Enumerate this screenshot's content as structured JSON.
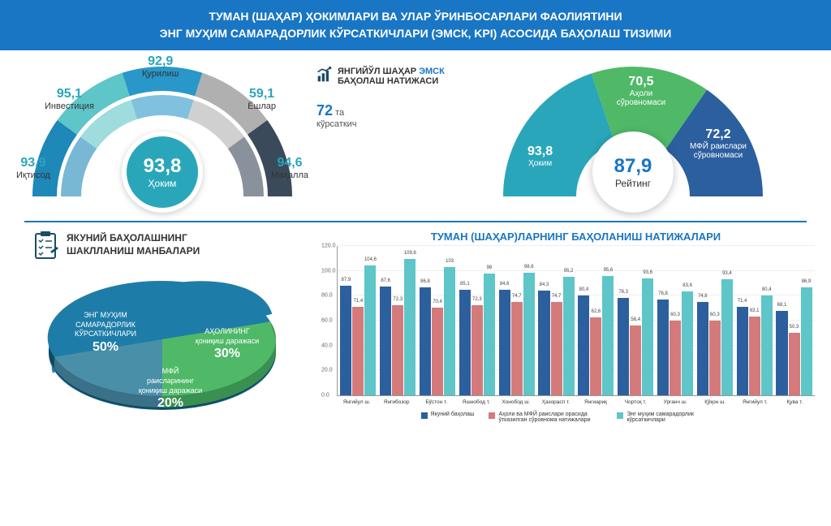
{
  "header": {
    "line1": "ТУМАН (ШАҲАР) ҲОКИМЛАРИ ВА УЛАР ЎРИНБОСАРЛАРИ ФАОЛИЯТИНИ",
    "line2": "ЭНГ МУҲИМ САМАРАДОРЛИК КЎРСАТКИЧЛАРИ (ЭМСК, KPI) АСОСИДА БАҲОЛАШ ТИЗИМИ"
  },
  "left_gauge": {
    "type": "semi-donut",
    "center_value": "93,8",
    "center_label": "Ҳоким",
    "center_color": "#2aa6ba",
    "segments": [
      {
        "label": "Иқтисод",
        "value": "93,9",
        "color": "#1e88b8"
      },
      {
        "label": "Инвестиция",
        "value": "95,1",
        "color": "#5ec5c8"
      },
      {
        "label": "Қурилиш",
        "value": "92,9",
        "color": "#2997c9"
      },
      {
        "label": "Ёшлар",
        "value": "59,1",
        "color": "#b0b0b0"
      },
      {
        "label": "Маҳалла",
        "value": "94,6",
        "color": "#3a4a5a"
      }
    ]
  },
  "mid_info": {
    "title_prefix": "ЯНГИЙЎЛ ШАҲАР ",
    "title_blue": "ЭМСК",
    "title_suffix": "БАҲОЛАШ НАТИЖАСИ",
    "count_num": "72",
    "count_suffix_1": " та",
    "count_suffix_2": "кўрсаткич"
  },
  "right_gauge": {
    "type": "semi-donut",
    "center_value": "87,9",
    "center_label": "Рейтинг",
    "segments": [
      {
        "label": "Ҳоким",
        "value": "93,8",
        "color": "#2aa6ba"
      },
      {
        "label": "Аҳоли сўровномаси",
        "value": "70,5",
        "color": "#4fb968"
      },
      {
        "label": "МФЙ раислари сўровномаси",
        "value": "72,2",
        "color": "#2c5f9e"
      }
    ]
  },
  "pie_section": {
    "title_line1": "ЯКУНИЙ БАҲОЛАШНИНГ",
    "title_line2": "ШАКЛЛАНИШ МАНБАЛАРИ",
    "clipboard_color": "#1a4d66",
    "slices": [
      {
        "label_l1": "ЭНГ МУҲИМ",
        "label_l2": "САМАРАДОРЛИК",
        "label_l3": "КЎРСАТКИЧЛАРИ",
        "pct": "50%",
        "color": "#1e7da8"
      },
      {
        "label_l1": "АҲОЛИНИНГ",
        "label_l2": "қониқиш даражаси",
        "label_l3": "",
        "pct": "30%",
        "color": "#4fb968"
      },
      {
        "label_l1": "МФЙ",
        "label_l2": "раисларининг",
        "label_l3": "қониқиш даражаси",
        "pct": "20%",
        "color": "#4a8fa8"
      }
    ]
  },
  "bar_chart": {
    "title": "ТУМАН (ШАҲАР)ЛАРНИНГ БАҲОЛАНИШ НАТИЖАЛАРИ",
    "type": "grouped-bar",
    "ymax": 120,
    "yticks": [
      0,
      20,
      40,
      60,
      80,
      100,
      120
    ],
    "colors": {
      "s1": "#2c5f9e",
      "s2": "#d47a7a",
      "s3": "#5ec5c8"
    },
    "categories": [
      "Янгийул ш.",
      "Янгибозор",
      "Бўстон т.",
      "Яшнобод т.",
      "Хонобод ш.",
      "Ҳазорасп т.",
      "Янгиариқ",
      "Чортоқ т.",
      "Урганч ш.",
      "Қўқон ш.",
      "Янгийул т.",
      "Қува т."
    ],
    "series": [
      {
        "name": "Якуний баҳолаш",
        "values": [
          87.9,
          87.6,
          86.8,
          85.1,
          84.6,
          84.3,
          80.4,
          78.3,
          76.8,
          74.8,
          71.4,
          68.1
        ]
      },
      {
        "name": "Аҳоли ва МФЙ раислари орасида ўтказилган сўровнома натижалари",
        "values": [
          71.4,
          72.3,
          70.4,
          72.3,
          74.7,
          74.7,
          62.6,
          56.4,
          60.3,
          60.3,
          63.1,
          50.3
        ]
      },
      {
        "name": "Энг муҳим самарадорлик кўрсаткичлари",
        "values": [
          104.6,
          109.6,
          103,
          98,
          98.6,
          95.2,
          95.6,
          93.6,
          83.6,
          93.4,
          80.4,
          86.9
        ]
      }
    ],
    "legend": [
      {
        "label": "Якуний баҳолаш",
        "color": "#2c5f9e"
      },
      {
        "label": "Аҳоли ва МФЙ раислари орасида ўтказилган сўровнома натижалари",
        "color": "#d47a7a"
      },
      {
        "label": "Энг муҳим самарадорлик кўрсаткичлари",
        "color": "#5ec5c8"
      }
    ]
  }
}
